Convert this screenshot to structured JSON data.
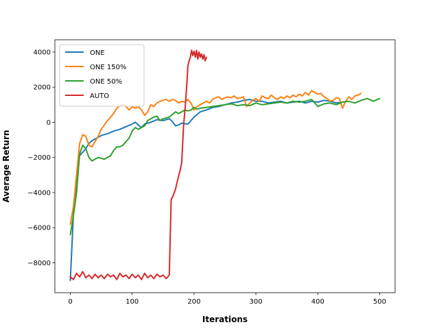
{
  "chart_data": {
    "type": "line",
    "title": "",
    "xlabel": "Iterations",
    "ylabel": "Average Return",
    "xlim": [
      -25,
      525
    ],
    "ylim": [
      -9700,
      4700
    ],
    "x_ticks": [
      0,
      100,
      200,
      300,
      400,
      500
    ],
    "y_ticks": [
      -8000,
      -6000,
      -4000,
      -2000,
      0,
      2000,
      4000
    ],
    "grid": false,
    "legend_position": "top-left",
    "series": [
      {
        "name": "ONE",
        "color": "#1f77b4",
        "points": [
          [
            0,
            -9000
          ],
          [
            5,
            -5200
          ],
          [
            10,
            -3200
          ],
          [
            15,
            -1900
          ],
          [
            20,
            -1700
          ],
          [
            25,
            -1500
          ],
          [
            30,
            -1200
          ],
          [
            35,
            -1050
          ],
          [
            40,
            -950
          ],
          [
            50,
            -750
          ],
          [
            60,
            -650
          ],
          [
            70,
            -500
          ],
          [
            80,
            -400
          ],
          [
            90,
            -250
          ],
          [
            100,
            -100
          ],
          [
            105,
            0
          ],
          [
            110,
            -150
          ],
          [
            115,
            -300
          ],
          [
            120,
            -100
          ],
          [
            130,
            0
          ],
          [
            140,
            150
          ],
          [
            150,
            100
          ],
          [
            160,
            200
          ],
          [
            165,
            50
          ],
          [
            170,
            -200
          ],
          [
            175,
            -150
          ],
          [
            180,
            -50
          ],
          [
            190,
            -100
          ],
          [
            200,
            300
          ],
          [
            210,
            600
          ],
          [
            220,
            700
          ],
          [
            230,
            850
          ],
          [
            240,
            900
          ],
          [
            250,
            1000
          ],
          [
            260,
            1100
          ],
          [
            270,
            1150
          ],
          [
            280,
            1250
          ],
          [
            290,
            1300
          ],
          [
            300,
            1200
          ],
          [
            310,
            1200
          ],
          [
            320,
            1100
          ],
          [
            330,
            1150
          ],
          [
            340,
            1200
          ],
          [
            350,
            1100
          ],
          [
            360,
            1150
          ],
          [
            370,
            1200
          ],
          [
            380,
            1100
          ],
          [
            390,
            1200
          ],
          [
            400,
            1150
          ],
          [
            410,
            1250
          ],
          [
            420,
            1200
          ],
          [
            430,
            1100
          ],
          [
            440,
            1150
          ]
        ]
      },
      {
        "name": "ONE 150%",
        "color": "#ff7f0e",
        "points": [
          [
            0,
            -5800
          ],
          [
            5,
            -4800
          ],
          [
            10,
            -3000
          ],
          [
            15,
            -1200
          ],
          [
            20,
            -700
          ],
          [
            25,
            -800
          ],
          [
            30,
            -1300
          ],
          [
            35,
            -1400
          ],
          [
            40,
            -1100
          ],
          [
            45,
            -800
          ],
          [
            50,
            -400
          ],
          [
            55,
            -150
          ],
          [
            60,
            100
          ],
          [
            65,
            300
          ],
          [
            70,
            500
          ],
          [
            75,
            800
          ],
          [
            80,
            950
          ],
          [
            85,
            1000
          ],
          [
            90,
            900
          ],
          [
            95,
            700
          ],
          [
            100,
            900
          ],
          [
            105,
            800
          ],
          [
            110,
            900
          ],
          [
            115,
            700
          ],
          [
            120,
            400
          ],
          [
            125,
            600
          ],
          [
            130,
            1000
          ],
          [
            135,
            900
          ],
          [
            140,
            1100
          ],
          [
            145,
            1200
          ],
          [
            150,
            1250
          ],
          [
            155,
            1300
          ],
          [
            160,
            1200
          ],
          [
            165,
            1300
          ],
          [
            170,
            1250
          ],
          [
            175,
            1100
          ],
          [
            180,
            1200
          ],
          [
            185,
            1150
          ],
          [
            190,
            1300
          ],
          [
            195,
            1100
          ],
          [
            200,
            700
          ],
          [
            205,
            900
          ],
          [
            210,
            1000
          ],
          [
            215,
            1100
          ],
          [
            220,
            1200
          ],
          [
            225,
            1100
          ],
          [
            230,
            1300
          ],
          [
            235,
            1400
          ],
          [
            240,
            1450
          ],
          [
            245,
            1300
          ],
          [
            250,
            1400
          ],
          [
            255,
            1450
          ],
          [
            260,
            1400
          ],
          [
            265,
            1500
          ],
          [
            270,
            1350
          ],
          [
            275,
            1400
          ],
          [
            280,
            1450
          ],
          [
            285,
            900
          ],
          [
            290,
            1100
          ],
          [
            295,
            1250
          ],
          [
            300,
            1350
          ],
          [
            305,
            1200
          ],
          [
            310,
            1500
          ],
          [
            315,
            1400
          ],
          [
            320,
            1350
          ],
          [
            325,
            1550
          ],
          [
            330,
            1400
          ],
          [
            335,
            1300
          ],
          [
            340,
            1450
          ],
          [
            345,
            1350
          ],
          [
            350,
            1500
          ],
          [
            355,
            1400
          ],
          [
            360,
            1550
          ],
          [
            365,
            1450
          ],
          [
            370,
            1600
          ],
          [
            375,
            1500
          ],
          [
            380,
            1700
          ],
          [
            385,
            1550
          ],
          [
            390,
            1800
          ],
          [
            395,
            1700
          ],
          [
            400,
            1600
          ],
          [
            405,
            1650
          ],
          [
            410,
            1450
          ],
          [
            415,
            1350
          ],
          [
            420,
            1200
          ],
          [
            425,
            1250
          ],
          [
            430,
            1400
          ],
          [
            435,
            1350
          ],
          [
            440,
            800
          ],
          [
            445,
            1200
          ],
          [
            450,
            1450
          ],
          [
            455,
            1300
          ],
          [
            460,
            1500
          ],
          [
            465,
            1550
          ],
          [
            470,
            1650
          ]
        ]
      },
      {
        "name": "ONE 50%",
        "color": "#2ca02c",
        "points": [
          [
            0,
            -6400
          ],
          [
            5,
            -5300
          ],
          [
            10,
            -4000
          ],
          [
            15,
            -1800
          ],
          [
            20,
            -1300
          ],
          [
            25,
            -1500
          ],
          [
            30,
            -2000
          ],
          [
            35,
            -2200
          ],
          [
            40,
            -2100
          ],
          [
            45,
            -2000
          ],
          [
            50,
            -2050
          ],
          [
            55,
            -2100
          ],
          [
            60,
            -2000
          ],
          [
            65,
            -1900
          ],
          [
            70,
            -1600
          ],
          [
            75,
            -1400
          ],
          [
            80,
            -1400
          ],
          [
            85,
            -1300
          ],
          [
            90,
            -1100
          ],
          [
            95,
            -900
          ],
          [
            100,
            -500
          ],
          [
            105,
            -300
          ],
          [
            110,
            -400
          ],
          [
            115,
            -300
          ],
          [
            120,
            -200
          ],
          [
            125,
            100
          ],
          [
            130,
            200
          ],
          [
            135,
            300
          ],
          [
            140,
            350
          ],
          [
            145,
            100
          ],
          [
            150,
            200
          ],
          [
            155,
            250
          ],
          [
            160,
            300
          ],
          [
            165,
            450
          ],
          [
            170,
            600
          ],
          [
            175,
            500
          ],
          [
            180,
            600
          ],
          [
            185,
            700
          ],
          [
            190,
            650
          ],
          [
            195,
            700
          ],
          [
            200,
            850
          ],
          [
            205,
            750
          ],
          [
            210,
            800
          ],
          [
            220,
            850
          ],
          [
            230,
            900
          ],
          [
            240,
            950
          ],
          [
            250,
            1000
          ],
          [
            260,
            1050
          ],
          [
            270,
            950
          ],
          [
            280,
            1000
          ],
          [
            290,
            950
          ],
          [
            300,
            1100
          ],
          [
            310,
            1000
          ],
          [
            320,
            1050
          ],
          [
            330,
            1100
          ],
          [
            340,
            1150
          ],
          [
            350,
            1100
          ],
          [
            360,
            1200
          ],
          [
            370,
            1150
          ],
          [
            380,
            1200
          ],
          [
            390,
            1300
          ],
          [
            400,
            900
          ],
          [
            410,
            1050
          ],
          [
            420,
            1100
          ],
          [
            430,
            1000
          ],
          [
            440,
            1150
          ],
          [
            450,
            1200
          ],
          [
            460,
            1100
          ],
          [
            470,
            1250
          ],
          [
            480,
            1350
          ],
          [
            490,
            1200
          ],
          [
            500,
            1350
          ]
        ]
      },
      {
        "name": "AUTO",
        "color": "#d62728",
        "points": [
          [
            0,
            -8800
          ],
          [
            5,
            -8950
          ],
          [
            10,
            -8600
          ],
          [
            15,
            -8800
          ],
          [
            20,
            -8500
          ],
          [
            25,
            -8850
          ],
          [
            30,
            -8700
          ],
          [
            35,
            -8900
          ],
          [
            40,
            -8650
          ],
          [
            45,
            -8850
          ],
          [
            50,
            -8700
          ],
          [
            55,
            -8900
          ],
          [
            60,
            -8650
          ],
          [
            65,
            -8800
          ],
          [
            70,
            -8700
          ],
          [
            75,
            -8950
          ],
          [
            80,
            -8600
          ],
          [
            85,
            -8800
          ],
          [
            90,
            -8700
          ],
          [
            95,
            -8900
          ],
          [
            100,
            -8650
          ],
          [
            105,
            -8850
          ],
          [
            110,
            -8700
          ],
          [
            115,
            -8950
          ],
          [
            120,
            -8600
          ],
          [
            125,
            -8850
          ],
          [
            130,
            -8700
          ],
          [
            135,
            -8900
          ],
          [
            140,
            -8650
          ],
          [
            145,
            -8800
          ],
          [
            150,
            -8700
          ],
          [
            155,
            -8900
          ],
          [
            160,
            -8700
          ],
          [
            163,
            -4400
          ],
          [
            166,
            -4200
          ],
          [
            170,
            -3800
          ],
          [
            174,
            -3200
          ],
          [
            177,
            -2800
          ],
          [
            180,
            -2300
          ],
          [
            183,
            -200
          ],
          [
            186,
            1000
          ],
          [
            188,
            2000
          ],
          [
            190,
            3200
          ],
          [
            192,
            3500
          ],
          [
            194,
            3700
          ],
          [
            196,
            4100
          ],
          [
            198,
            3800
          ],
          [
            200,
            4050
          ],
          [
            202,
            3700
          ],
          [
            204,
            4100
          ],
          [
            206,
            3600
          ],
          [
            208,
            4000
          ],
          [
            210,
            3700
          ],
          [
            212,
            3900
          ],
          [
            214,
            3600
          ],
          [
            216,
            3850
          ],
          [
            218,
            3500
          ],
          [
            220,
            3700
          ]
        ]
      }
    ]
  }
}
